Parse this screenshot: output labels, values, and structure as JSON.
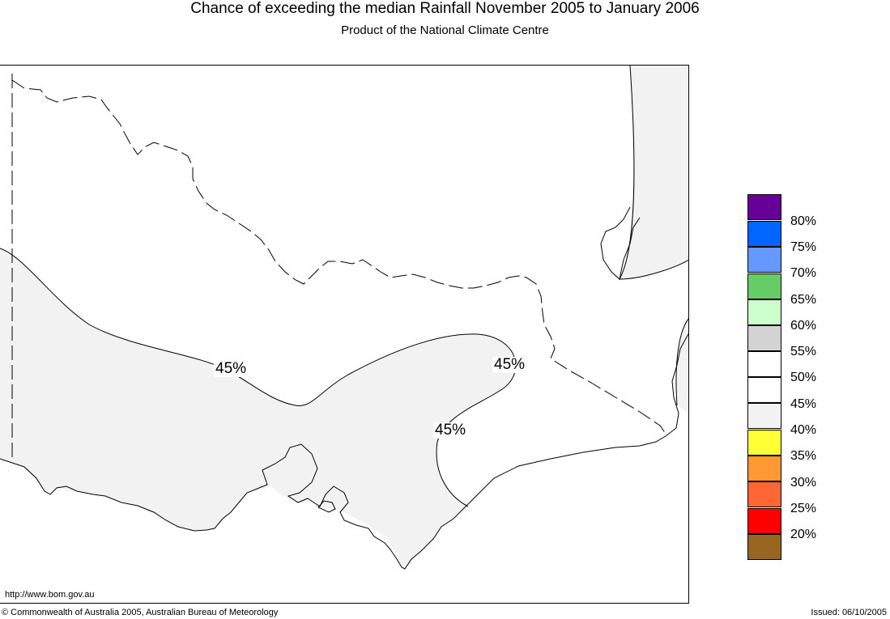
{
  "header": {
    "title": "Chance of exceeding the median Rainfall November 2005 to January 2006",
    "subtitle": "Product of the National Climate Centre"
  },
  "map": {
    "region": "Victoria",
    "contour_labels": [
      "45%",
      "45%",
      "45%"
    ]
  },
  "legend": {
    "colors": [
      "#660099",
      "#0066ff",
      "#6699ff",
      "#66cc66",
      "#ccffcc",
      "#d3d3d3",
      "#ffffff",
      "#ffffff",
      "#f2f2f2",
      "#ffff33",
      "#ff9933",
      "#ff6633",
      "#ff0000",
      "#996622"
    ],
    "labels": [
      "80%",
      "75%",
      "70%",
      "65%",
      "60%",
      "55%",
      "50%",
      "45%",
      "40%",
      "35%",
      "30%",
      "25%",
      "20%"
    ]
  },
  "footer": {
    "url": "http://www.bom.gov.au",
    "copyright": "© Commonwealth of Australia 2005, Australian Bureau of Meteorology",
    "issued": "Issued: 06/10/2005"
  }
}
